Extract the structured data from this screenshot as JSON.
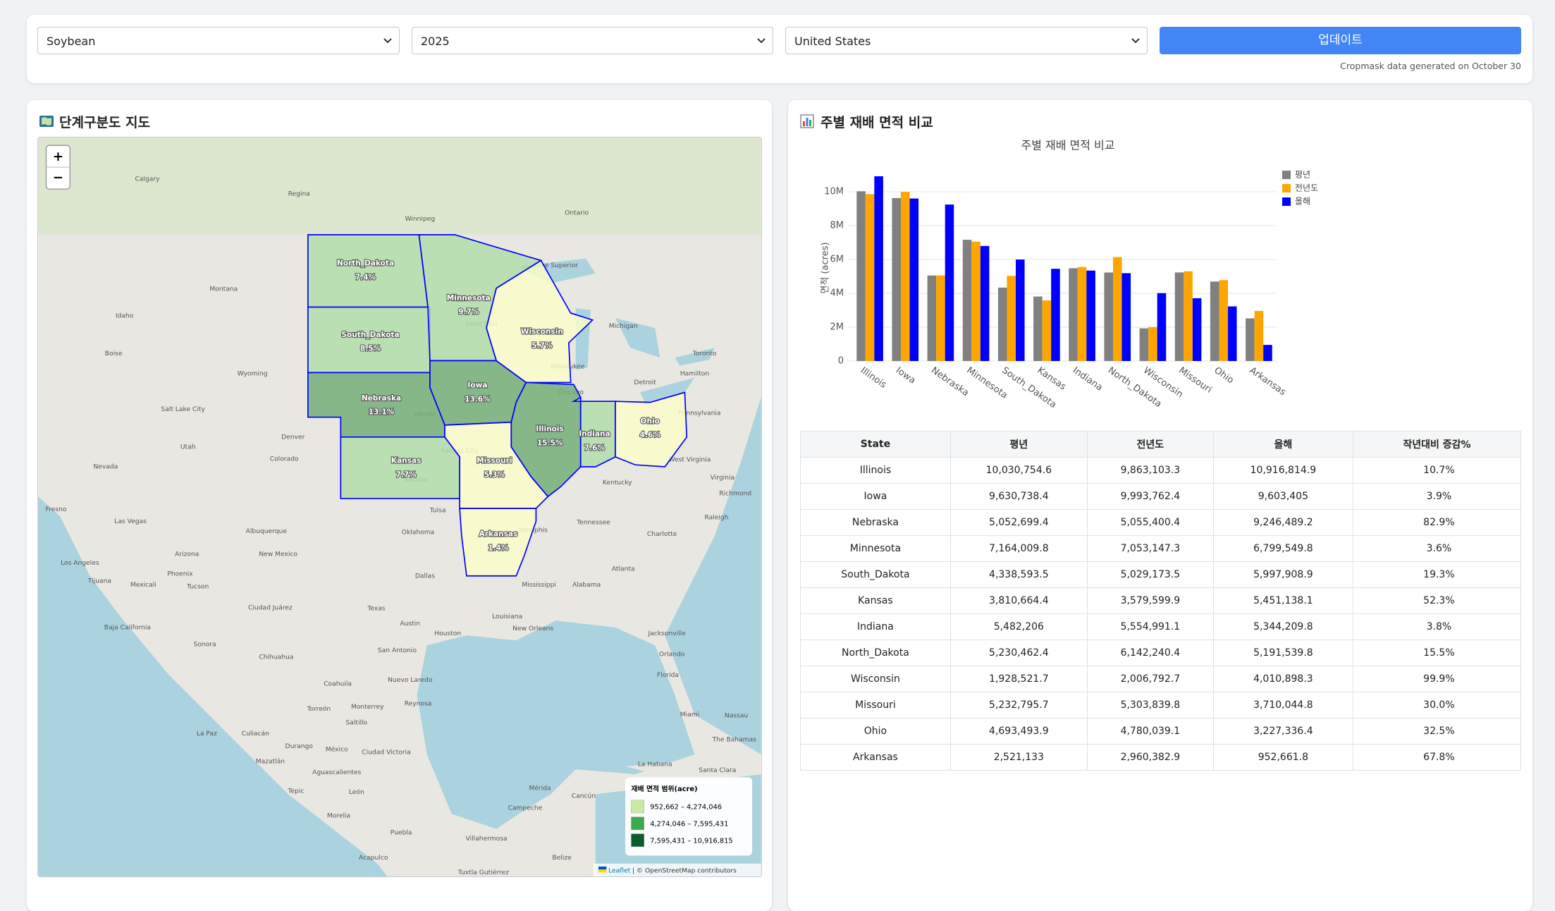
{
  "controls": {
    "crop": "Soybean",
    "year": "2025",
    "country": "United States",
    "button": "업데이트",
    "note": "Cropmask data generated on October 30"
  },
  "map": {
    "title": "단계구분도 지도",
    "zoom_in": "+",
    "zoom_out": "−",
    "states": [
      {
        "name": "North_Dakota",
        "share": "7.4%"
      },
      {
        "name": "South_Dakota",
        "share": "8.5%"
      },
      {
        "name": "Nebraska",
        "share": "13.1%"
      },
      {
        "name": "Kansas",
        "share": "7.7%"
      },
      {
        "name": "Minnesota",
        "share": "9.7%"
      },
      {
        "name": "Iowa",
        "share": "13.6%"
      },
      {
        "name": "Wisconsin",
        "share": "5.7%"
      },
      {
        "name": "Illinois",
        "share": "15.5%"
      },
      {
        "name": "Indiana",
        "share": "7.6%"
      },
      {
        "name": "Ohio",
        "share": "4.6%"
      },
      {
        "name": "Missouri",
        "share": "5.3%"
      },
      {
        "name": "Arkansas",
        "share": "1.4%"
      }
    ],
    "places": [
      "Calgary",
      "Regina",
      "Winnipeg",
      "Ontario",
      "Montana",
      "Idaho",
      "Boise",
      "Wyoming",
      "Salt Lake City",
      "Denver",
      "Colorado",
      "Utah",
      "Nevada",
      "Fresno",
      "Las Vegas",
      "Arizona",
      "Los Angeles",
      "Tijuana",
      "Phoenix",
      "Tucson",
      "Albuquerque",
      "New Mexico",
      "Oklahoma",
      "Tulsa",
      "Dallas",
      "Texas",
      "Austin",
      "Houston",
      "San Antonio",
      "New Orleans",
      "Memphis",
      "Atlanta",
      "Charlotte",
      "Raleigh",
      "Richmond",
      "Toronto",
      "Detroit",
      "Chicago",
      "Milwaukee",
      "Hamilton",
      "Tennessee",
      "Kentucky",
      "Mississippi",
      "Alabama",
      "Louisiana",
      "Florida",
      "Orlando",
      "Jacksonville",
      "Miami",
      "Nassau",
      "The Bahamas",
      "La Habana",
      "Santa Clara",
      "Monterrey",
      "Chihuahua",
      "Sonora",
      "Coahuila",
      "Nuevo Laredo",
      "Reynosa",
      "Torreón",
      "Saltillo",
      "Durango",
      "La Paz",
      "Culiacán",
      "Mazatlán",
      "México",
      "Ciudad Victoria",
      "Aguascalientes",
      "León",
      "Morelia",
      "Puebla",
      "Acapulco",
      "Tepic",
      "Villahermosa",
      "Mérida",
      "Campeche",
      "Cancún",
      "Belize",
      "Tuxtla Gutiérrez",
      "Ciudad Juárez",
      "Mexicali",
      "Baja California",
      "Kansas City",
      "Saint Paul",
      "Lake Superior",
      "Michigan",
      "Pennsylvania",
      "West Virginia",
      "Virginia",
      "Lincoln",
      "Wichita"
    ],
    "legend": {
      "title": "재배 면적 범위(acre)",
      "ranges": [
        "952,662 – 4,274,046",
        "4,274,046 – 7,595,431",
        "7,595,431 – 10,916,815"
      ]
    },
    "attribution_link": "Leaflet",
    "attribution": "| © OpenStreetMap contributors"
  },
  "chart_panel_title": "주별 재배 면적 비교",
  "chart_data": {
    "type": "bar",
    "title": "주별 재배 면적 비교",
    "y_label": "면적 (acres)",
    "categories": [
      "Illinois",
      "Iowa",
      "Nebraska",
      "Minnesota",
      "South_Dakota",
      "Kansas",
      "Indiana",
      "North_Dakota",
      "Wisconsin",
      "Missouri",
      "Ohio",
      "Arkansas"
    ],
    "series": [
      {
        "name": "평년",
        "color": "#808080",
        "values": [
          10030754.6,
          9630738.4,
          5052699.4,
          7164009.8,
          4338593.5,
          3810664.4,
          5482206,
          5230462.4,
          1928521.7,
          5232795.7,
          4693493.9,
          2521133
        ]
      },
      {
        "name": "전년도",
        "color": "#ffa500",
        "values": [
          9863103.3,
          9993762.4,
          5055400.4,
          7053147.3,
          5029173.5,
          3579599.9,
          5554991.1,
          6142240.4,
          2006792.7,
          5303839.8,
          4780039.1,
          2960382.9
        ]
      },
      {
        "name": "올해",
        "color": "#0000ff",
        "values": [
          10916814.9,
          9603405,
          9246489.2,
          6799549.8,
          5997908.9,
          5451138.1,
          5344209.8,
          5191539.8,
          4010898.3,
          3710044.8,
          3227336.4,
          952661.8
        ]
      }
    ],
    "ylim": [
      0,
      11000000
    ],
    "yticks": [
      0,
      {
        "value": 2000000,
        "label": "2M"
      },
      {
        "value": 4000000,
        "label": "4M"
      },
      {
        "value": 6000000,
        "label": "6M"
      },
      {
        "value": 8000000,
        "label": "8M"
      },
      {
        "value": 10000000,
        "label": "10M"
      }
    ],
    "grid": true
  },
  "table": {
    "header": [
      "State",
      "평년",
      "전년도",
      "올해",
      "작년대비 증감%"
    ],
    "rows": [
      [
        "Illinois",
        "10,030,754.6",
        "9,863,103.3",
        "10,916,814.9",
        "10.7%"
      ],
      [
        "Iowa",
        "9,630,738.4",
        "9,993,762.4",
        "9,603,405",
        "3.9%"
      ],
      [
        "Nebraska",
        "5,052,699.4",
        "5,055,400.4",
        "9,246,489.2",
        "82.9%"
      ],
      [
        "Minnesota",
        "7,164,009.8",
        "7,053,147.3",
        "6,799,549.8",
        "3.6%"
      ],
      [
        "South_Dakota",
        "4,338,593.5",
        "5,029,173.5",
        "5,997,908.9",
        "19.3%"
      ],
      [
        "Kansas",
        "3,810,664.4",
        "3,579,599.9",
        "5,451,138.1",
        "52.3%"
      ],
      [
        "Indiana",
        "5,482,206",
        "5,554,991.1",
        "5,344,209.8",
        "3.8%"
      ],
      [
        "North_Dakota",
        "5,230,462.4",
        "6,142,240.4",
        "5,191,539.8",
        "15.5%"
      ],
      [
        "Wisconsin",
        "1,928,521.7",
        "2,006,792.7",
        "4,010,898.3",
        "99.9%"
      ],
      [
        "Missouri",
        "5,232,795.7",
        "5,303,839.8",
        "3,710,044.8",
        "30.0%"
      ],
      [
        "Ohio",
        "4,693,493.9",
        "4,780,039.1",
        "3,227,336.4",
        "32.5%"
      ],
      [
        "Arkansas",
        "2,521,133",
        "2,960,382.9",
        "952,661.8",
        "67.8%"
      ]
    ]
  }
}
